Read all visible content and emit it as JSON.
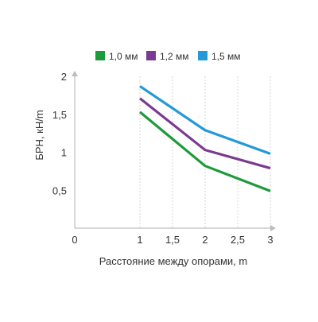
{
  "chart_data": {
    "type": "line",
    "xlabel": "Расстояние между опорами, m",
    "ylabel": "БРН, кН/m",
    "xlim": [
      0,
      3
    ],
    "ylim": [
      0,
      2
    ],
    "x_ticks": [
      "0",
      "1",
      "1,5",
      "2",
      "2,5",
      "3"
    ],
    "x_tick_values": [
      0,
      1,
      1.5,
      2,
      2.5,
      3
    ],
    "y_ticks": [
      "0,5",
      "1",
      "1,5",
      "2"
    ],
    "y_tick_values": [
      0.5,
      1,
      1.5,
      2
    ],
    "grid": "vertical",
    "legend_position": "top",
    "series": [
      {
        "name": "1,0 мм",
        "color": "#1e9a3a",
        "x": [
          1,
          2,
          3
        ],
        "y": [
          1.53,
          0.82,
          0.49
        ]
      },
      {
        "name": "1,2 мм",
        "color": "#7b3a91",
        "x": [
          1,
          2,
          3
        ],
        "y": [
          1.71,
          1.03,
          0.79
        ]
      },
      {
        "name": "1,5 мм",
        "color": "#2399d8",
        "x": [
          1,
          2,
          3
        ],
        "y": [
          1.87,
          1.29,
          0.98
        ]
      }
    ]
  }
}
